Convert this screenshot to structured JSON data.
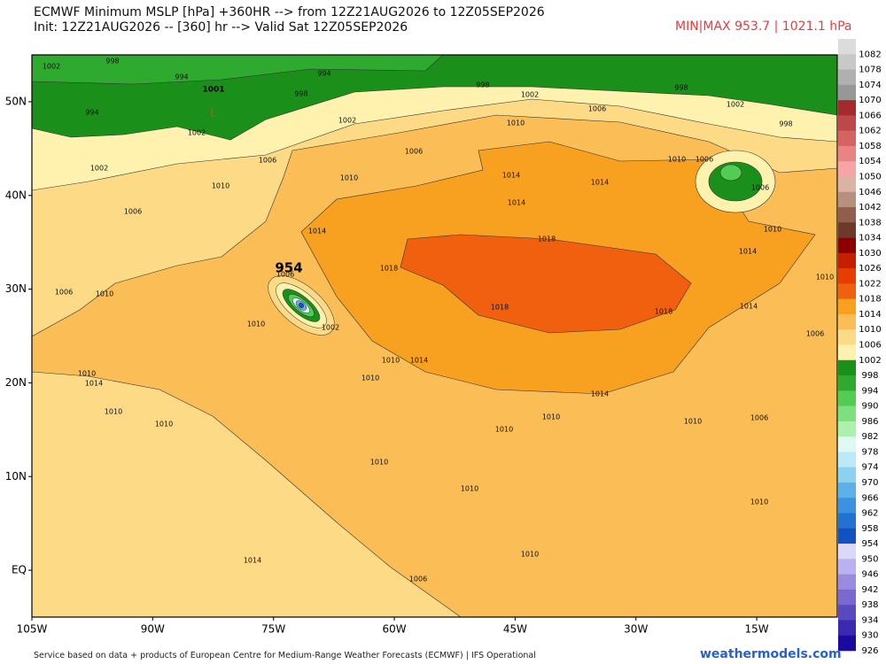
{
  "header": {
    "title": "ECMWF Minimum MSLP [hPa] +360HR --> from 12Z21AUG2026 to 12Z05SEP2026",
    "subtitle": "Init: 12Z21AUG2026 -- [360] hr --> Valid Sat 12Z05SEP2026",
    "minmax": "MIN|MAX 953.7 | 1021.1 hPa"
  },
  "map": {
    "xlim": [
      -105,
      -5
    ],
    "ylim": [
      -5,
      55
    ],
    "xticks": [
      {
        "value": -105,
        "label": "105W"
      },
      {
        "value": -90,
        "label": "90W"
      },
      {
        "value": -75,
        "label": "75W"
      },
      {
        "value": -60,
        "label": "60W"
      },
      {
        "value": -45,
        "label": "45W"
      },
      {
        "value": -30,
        "label": "30W"
      },
      {
        "value": -15,
        "label": "15W"
      }
    ],
    "yticks": [
      {
        "value": 50,
        "label": "50N"
      },
      {
        "value": 40,
        "label": "40N"
      },
      {
        "value": 30,
        "label": "30N"
      },
      {
        "value": 20,
        "label": "20N"
      },
      {
        "value": 10,
        "label": "10N"
      },
      {
        "value": 0,
        "label": "EQ"
      }
    ],
    "storm_label": "954",
    "low_label": "1001",
    "low_marker": "L",
    "contour_labels": [
      "1002",
      "998",
      "994",
      "994",
      "998",
      "994",
      "998",
      "1002",
      "1006",
      "998",
      "1002",
      "998",
      "1002",
      "1002",
      "1010",
      "1006",
      "1006",
      "1002",
      "1010",
      "1010",
      "1014",
      "1014",
      "1014",
      "1006",
      "1014",
      "1018",
      "1018",
      "1018",
      "1018",
      "1014",
      "1010",
      "1006",
      "1010",
      "1010",
      "1010",
      "1014",
      "1010",
      "1014",
      "1010",
      "1010",
      "1010",
      "1006",
      "1010",
      "1010",
      "1010",
      "1010",
      "1006",
      "1014",
      "1010",
      "1014",
      "1010",
      "1010",
      "1006",
      "1006",
      "1010",
      "1014",
      "1010",
      "1006",
      "1006",
      "1002"
    ]
  },
  "colorbar": [
    {
      "value": 1082,
      "color": "#dcdcdc"
    },
    {
      "value": 1078,
      "color": "#c8c8c8"
    },
    {
      "value": 1074,
      "color": "#b0b0b0"
    },
    {
      "value": 1070,
      "color": "#979797"
    },
    {
      "value": 1066,
      "color": "#a52a2a"
    },
    {
      "value": 1062,
      "color": "#bd4848"
    },
    {
      "value": 1058,
      "color": "#d46464"
    },
    {
      "value": 1054,
      "color": "#e88484"
    },
    {
      "value": 1050,
      "color": "#f5a5a5"
    },
    {
      "value": 1046,
      "color": "#d9b3a3"
    },
    {
      "value": 1042,
      "color": "#b89080"
    },
    {
      "value": 1038,
      "color": "#8f5e4c"
    },
    {
      "value": 1034,
      "color": "#6b3a2a"
    },
    {
      "value": 1030,
      "color": "#8b0000"
    },
    {
      "value": 1026,
      "color": "#c81e00"
    },
    {
      "value": 1022,
      "color": "#e83c00"
    },
    {
      "value": 1018,
      "color": "#f0600f"
    },
    {
      "value": 1014,
      "color": "#f8a020"
    },
    {
      "value": 1010,
      "color": "#fbbd55"
    },
    {
      "value": 1006,
      "color": "#fdda85"
    },
    {
      "value": 1002,
      "color": "#fef2ae"
    },
    {
      "value": 998,
      "color": "#1a8f1a"
    },
    {
      "value": 994,
      "color": "#2eab2e"
    },
    {
      "value": 990,
      "color": "#52cc52"
    },
    {
      "value": 986,
      "color": "#7ddf7d"
    },
    {
      "value": 982,
      "color": "#adefad"
    },
    {
      "value": 978,
      "color": "#ddf9f2"
    },
    {
      "value": 974,
      "color": "#bce9f8"
    },
    {
      "value": 970,
      "color": "#8cd2f0"
    },
    {
      "value": 966,
      "color": "#5cb2e8"
    },
    {
      "value": 962,
      "color": "#3a92e0"
    },
    {
      "value": 958,
      "color": "#2272d0"
    },
    {
      "value": 954,
      "color": "#1252c0"
    },
    {
      "value": 950,
      "color": "#dadaf8"
    },
    {
      "value": 946,
      "color": "#bab2f0"
    },
    {
      "value": 942,
      "color": "#9a8ae0"
    },
    {
      "value": 938,
      "color": "#7a6ad0"
    },
    {
      "value": 934,
      "color": "#5a4ac0"
    },
    {
      "value": 930,
      "color": "#3a2ab0"
    },
    {
      "value": 926,
      "color": "#1a0aa0"
    }
  ],
  "footer": {
    "source": "Service based on data + products of European Centre for Medium-Range Weather Forecasts (ECMWF) | IFS Operational",
    "brand": "weathermodels.com"
  }
}
